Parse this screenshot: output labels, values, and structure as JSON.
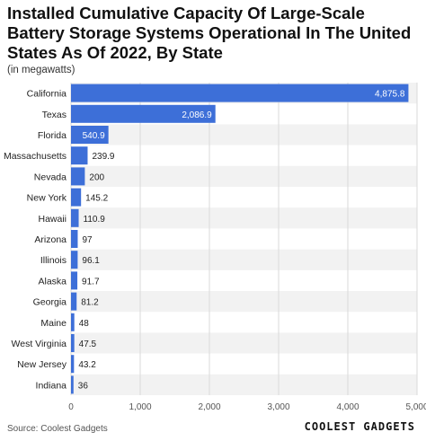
{
  "header": {
    "title": "Installed Cumulative Capacity Of Large-Scale Battery Storage Systems Operational In The United States As Of 2022, By State",
    "unit_note": "(in megawatts)"
  },
  "footer": {
    "source": "Source: Coolest Gadgets",
    "logo_text": "COOLEST GADGETS"
  },
  "chart_data": {
    "type": "bar",
    "orientation": "horizontal",
    "categories": [
      "California",
      "Texas",
      "Florida",
      "Massachusetts",
      "Nevada",
      "New York",
      "Hawaii",
      "Arizona",
      "Illinois",
      "Alaska",
      "Georgia",
      "Maine",
      "West Virginia",
      "New Jersey",
      "Indiana"
    ],
    "values": [
      4875.8,
      2086.9,
      540.9,
      239.9,
      200,
      145.2,
      110.9,
      97,
      96.1,
      91.7,
      81.2,
      48,
      47.5,
      43.2,
      36
    ],
    "value_labels": [
      "4,875.8",
      "2,086.9",
      "540.9",
      "239.9",
      "200",
      "145.2",
      "110.9",
      "97",
      "96.1",
      "91.7",
      "81.2",
      "48",
      "47.5",
      "43.2",
      "36"
    ],
    "xlim": [
      0,
      5000
    ],
    "xticks": [
      0,
      1000,
      2000,
      3000,
      4000,
      5000
    ],
    "xtick_labels": [
      "0",
      "1,000",
      "2,000",
      "3,000",
      "4,000",
      "5,000"
    ],
    "grid": true,
    "bar_color": "#3d6fd8",
    "band_color": "#f2f2f2"
  }
}
